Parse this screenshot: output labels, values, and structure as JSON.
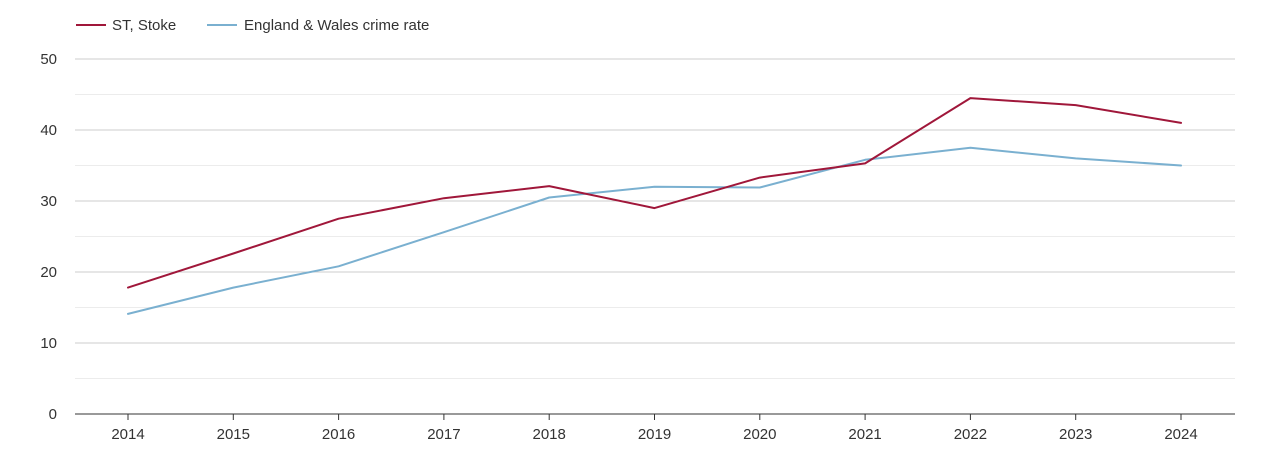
{
  "chart_data": {
    "type": "line",
    "title": "",
    "xlabel": "",
    "ylabel": "",
    "x": [
      "2014",
      "2015",
      "2016",
      "2017",
      "2018",
      "2019",
      "2020",
      "2021",
      "2022",
      "2023",
      "2024"
    ],
    "ylim": [
      0,
      50
    ],
    "yticks": [
      "0",
      "10",
      "20",
      "30",
      "40",
      "50"
    ],
    "grid": true,
    "legend_position": "top-left",
    "series": [
      {
        "name": "ST, Stoke",
        "color": "#a0173a",
        "values": [
          17.8,
          22.6,
          27.5,
          30.4,
          32.1,
          29.0,
          33.3,
          35.3,
          44.5,
          43.5,
          41.0
        ]
      },
      {
        "name": "England & Wales crime rate",
        "color": "#7ab0d0",
        "values": [
          14.1,
          17.8,
          20.8,
          25.6,
          30.5,
          32.0,
          31.9,
          35.8,
          37.5,
          36.0,
          35.0
        ]
      }
    ]
  }
}
